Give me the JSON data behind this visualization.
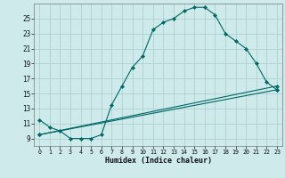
{
  "xlabel": "Humidex (Indice chaleur)",
  "bg_color": "#ceeaea",
  "grid_color": "#a8cccc",
  "line_color": "#006666",
  "xlim": [
    -0.5,
    23.5
  ],
  "ylim": [
    8.0,
    27.0
  ],
  "xticks": [
    0,
    1,
    2,
    3,
    4,
    5,
    6,
    7,
    8,
    9,
    10,
    11,
    12,
    13,
    14,
    15,
    16,
    17,
    18,
    19,
    20,
    21,
    22,
    23
  ],
  "yticks": [
    9,
    11,
    13,
    15,
    17,
    19,
    21,
    23,
    25
  ],
  "series1_x": [
    0,
    1,
    2,
    3,
    4,
    5,
    6,
    7,
    8,
    9,
    10,
    11,
    12,
    13,
    14,
    15,
    16,
    17,
    18,
    19,
    20,
    21,
    22,
    23
  ],
  "series1_y": [
    11.5,
    10.5,
    10.0,
    9.0,
    9.0,
    9.0,
    9.5,
    13.5,
    16.0,
    18.5,
    20.0,
    23.5,
    24.5,
    25.0,
    26.0,
    26.5,
    26.5,
    25.5,
    23.0,
    22.0,
    21.0,
    19.0,
    16.5,
    15.5
  ],
  "series2_x": [
    0,
    23
  ],
  "series2_y": [
    9.5,
    16.0
  ],
  "series3_x": [
    0,
    23
  ],
  "series3_y": [
    9.5,
    15.5
  ],
  "marker": "D",
  "marker_size": 2.2,
  "linewidth": 0.8
}
